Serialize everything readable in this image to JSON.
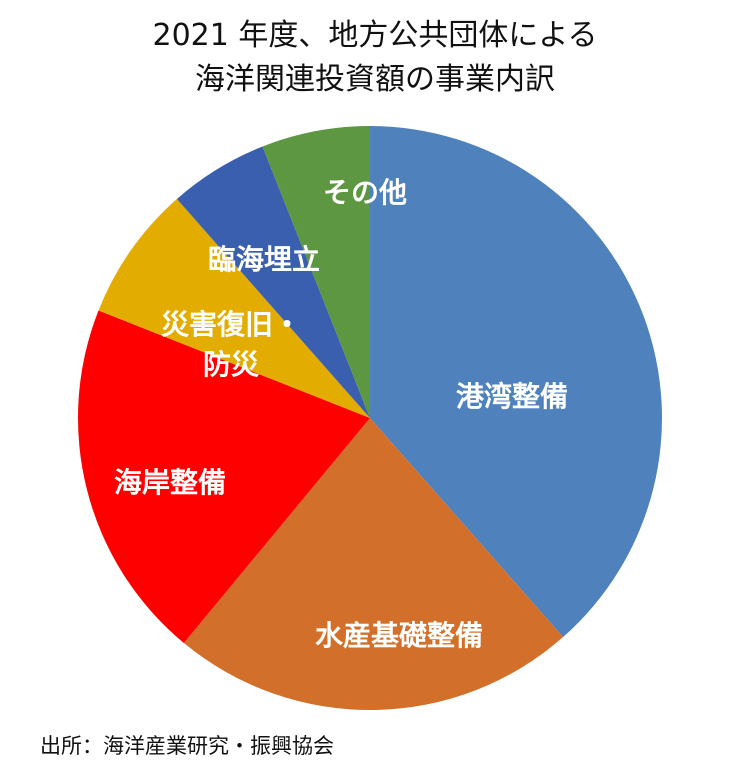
{
  "chart_data": {
    "type": "pie",
    "title_lines": [
      "2021 年度、地方公共団体による",
      "海洋関連投資額の事業内訳"
    ],
    "start": "12 o'clock",
    "direction": "clockwise",
    "slices": [
      {
        "label": "港湾整備",
        "value": 38.5,
        "color": "#4F81BD"
      },
      {
        "label": "水産基礎整備",
        "value": 22.5,
        "color": "#D2702B"
      },
      {
        "label": "海岸整備",
        "value": 20.0,
        "color": "#FF0000"
      },
      {
        "label": "災害復旧・防災",
        "value": 7.5,
        "color": "#E2AC00"
      },
      {
        "label": "臨海埋立",
        "value": 5.5,
        "color": "#3A5FAE"
      },
      {
        "label": "その他",
        "value": 6.0,
        "color": "#5E9742"
      }
    ],
    "label_lines": [
      [
        "港湾整備"
      ],
      [
        "水産基礎整備"
      ],
      [
        "海岸整備"
      ],
      [
        "災害復旧・",
        "防災"
      ],
      [
        "臨海埋立"
      ],
      [
        "その他"
      ]
    ]
  },
  "source": "出所：海洋産業研究・振興協会"
}
